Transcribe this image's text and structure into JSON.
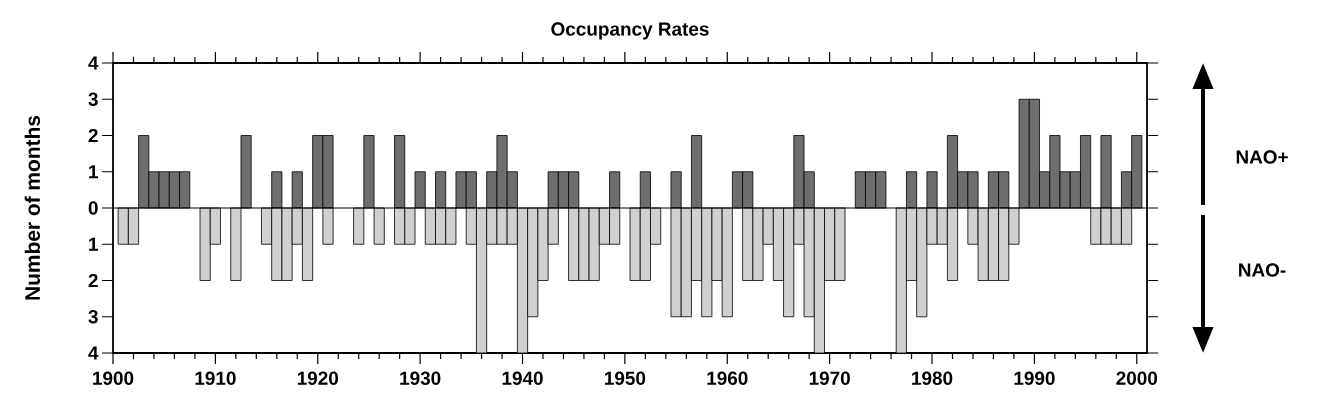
{
  "chart_data": {
    "type": "bar",
    "title": "Occupancy Rates",
    "ylabel": "Number of months",
    "x": [
      1901,
      1902,
      1903,
      1904,
      1905,
      1906,
      1907,
      1908,
      1909,
      1910,
      1911,
      1912,
      1913,
      1914,
      1915,
      1916,
      1917,
      1918,
      1919,
      1920,
      1921,
      1922,
      1923,
      1924,
      1925,
      1926,
      1927,
      1928,
      1929,
      1930,
      1931,
      1932,
      1933,
      1934,
      1935,
      1936,
      1937,
      1938,
      1939,
      1940,
      1941,
      1942,
      1943,
      1944,
      1945,
      1946,
      1947,
      1948,
      1949,
      1950,
      1951,
      1952,
      1953,
      1954,
      1955,
      1956,
      1957,
      1958,
      1959,
      1960,
      1961,
      1962,
      1963,
      1964,
      1965,
      1966,
      1967,
      1968,
      1969,
      1970,
      1971,
      1972,
      1973,
      1974,
      1975,
      1976,
      1977,
      1978,
      1979,
      1980,
      1981,
      1982,
      1983,
      1984,
      1985,
      1986,
      1987,
      1988,
      1989,
      1990,
      1991,
      1992,
      1993,
      1994,
      1995,
      1996,
      1997,
      1998,
      1999,
      2000
    ],
    "series": [
      {
        "name": "NAO+",
        "color": "#6e6e6e",
        "values": [
          null,
          null,
          2,
          1,
          1,
          1,
          1,
          null,
          null,
          null,
          null,
          null,
          2,
          null,
          null,
          1,
          null,
          1,
          null,
          2,
          2,
          null,
          null,
          null,
          2,
          null,
          null,
          2,
          null,
          1,
          null,
          1,
          null,
          1,
          1,
          null,
          1,
          2,
          1,
          null,
          null,
          null,
          1,
          1,
          1,
          null,
          null,
          null,
          1,
          null,
          null,
          1,
          null,
          null,
          1,
          null,
          2,
          null,
          null,
          null,
          1,
          1,
          null,
          null,
          null,
          null,
          2,
          1,
          null,
          null,
          null,
          null,
          1,
          1,
          1,
          null,
          null,
          1,
          null,
          1,
          null,
          2,
          1,
          1,
          null,
          1,
          1,
          null,
          3,
          3,
          1,
          2,
          1,
          1,
          2,
          null,
          2,
          null,
          1,
          2
        ]
      },
      {
        "name": "NAO-",
        "color": "#d0d0d0",
        "values": [
          -1,
          -1,
          null,
          null,
          null,
          null,
          null,
          null,
          -2,
          -1,
          null,
          -2,
          null,
          null,
          -1,
          -2,
          -2,
          -1,
          -2,
          null,
          -1,
          null,
          null,
          -1,
          null,
          -1,
          null,
          -1,
          -1,
          null,
          -1,
          -1,
          -1,
          null,
          -1,
          -4,
          -1,
          -1,
          -1,
          -4,
          -3,
          -2,
          -1,
          null,
          -2,
          -2,
          -2,
          -1,
          -1,
          null,
          -2,
          -2,
          -1,
          null,
          -3,
          -3,
          -2,
          -3,
          -2,
          -3,
          null,
          -2,
          -2,
          -1,
          -2,
          -3,
          -1,
          -3,
          -4,
          -2,
          -2,
          null,
          null,
          null,
          null,
          null,
          -4,
          -2,
          -3,
          -1,
          -1,
          -2,
          null,
          -1,
          -2,
          -2,
          -2,
          -1,
          null,
          null,
          null,
          null,
          null,
          null,
          null,
          -1,
          -1,
          -1,
          -1,
          null
        ]
      }
    ],
    "ref_lines": [
      {
        "axis": "y",
        "value": 0
      }
    ],
    "xlim": [
      1900,
      2001
    ],
    "ylim": [
      -4,
      4
    ],
    "xticks": [
      1900,
      {
        "value": 1902,
        "label": null
      },
      {
        "value": 1904,
        "label": null
      },
      {
        "value": 1906,
        "label": null
      },
      {
        "value": 1908,
        "label": null
      },
      1910,
      {
        "value": 1912,
        "label": null
      },
      {
        "value": 1914,
        "label": null
      },
      {
        "value": 1916,
        "label": null
      },
      {
        "value": 1918,
        "label": null
      },
      1920,
      {
        "value": 1922,
        "label": null
      },
      {
        "value": 1924,
        "label": null
      },
      {
        "value": 1926,
        "label": null
      },
      {
        "value": 1928,
        "label": null
      },
      1930,
      {
        "value": 1932,
        "label": null
      },
      {
        "value": 1934,
        "label": null
      },
      {
        "value": 1936,
        "label": null
      },
      {
        "value": 1938,
        "label": null
      },
      1940,
      {
        "value": 1942,
        "label": null
      },
      {
        "value": 1944,
        "label": null
      },
      {
        "value": 1946,
        "label": null
      },
      {
        "value": 1948,
        "label": null
      },
      1950,
      {
        "value": 1952,
        "label": null
      },
      {
        "value": 1954,
        "label": null
      },
      {
        "value": 1956,
        "label": null
      },
      {
        "value": 1958,
        "label": null
      },
      1960,
      {
        "value": 1962,
        "label": null
      },
      {
        "value": 1964,
        "label": null
      },
      {
        "value": 1966,
        "label": null
      },
      {
        "value": 1968,
        "label": null
      },
      1970,
      {
        "value": 1972,
        "label": null
      },
      {
        "value": 1974,
        "label": null
      },
      {
        "value": 1976,
        "label": null
      },
      {
        "value": 1978,
        "label": null
      },
      1980,
      {
        "value": 1982,
        "label": null
      },
      {
        "value": 1984,
        "label": null
      },
      {
        "value": 1986,
        "label": null
      },
      {
        "value": 1988,
        "label": null
      },
      1990,
      {
        "value": 1992,
        "label": null
      },
      {
        "value": 1994,
        "label": null
      },
      {
        "value": 1996,
        "label": null
      },
      {
        "value": 1998,
        "label": null
      },
      2000
    ],
    "yticks": [
      {
        "value": -4,
        "label": "4"
      },
      {
        "value": -3,
        "label": "3"
      },
      {
        "value": -2,
        "label": "2"
      },
      {
        "value": -1,
        "label": "1"
      },
      0,
      1,
      2,
      3,
      4
    ]
  }
}
